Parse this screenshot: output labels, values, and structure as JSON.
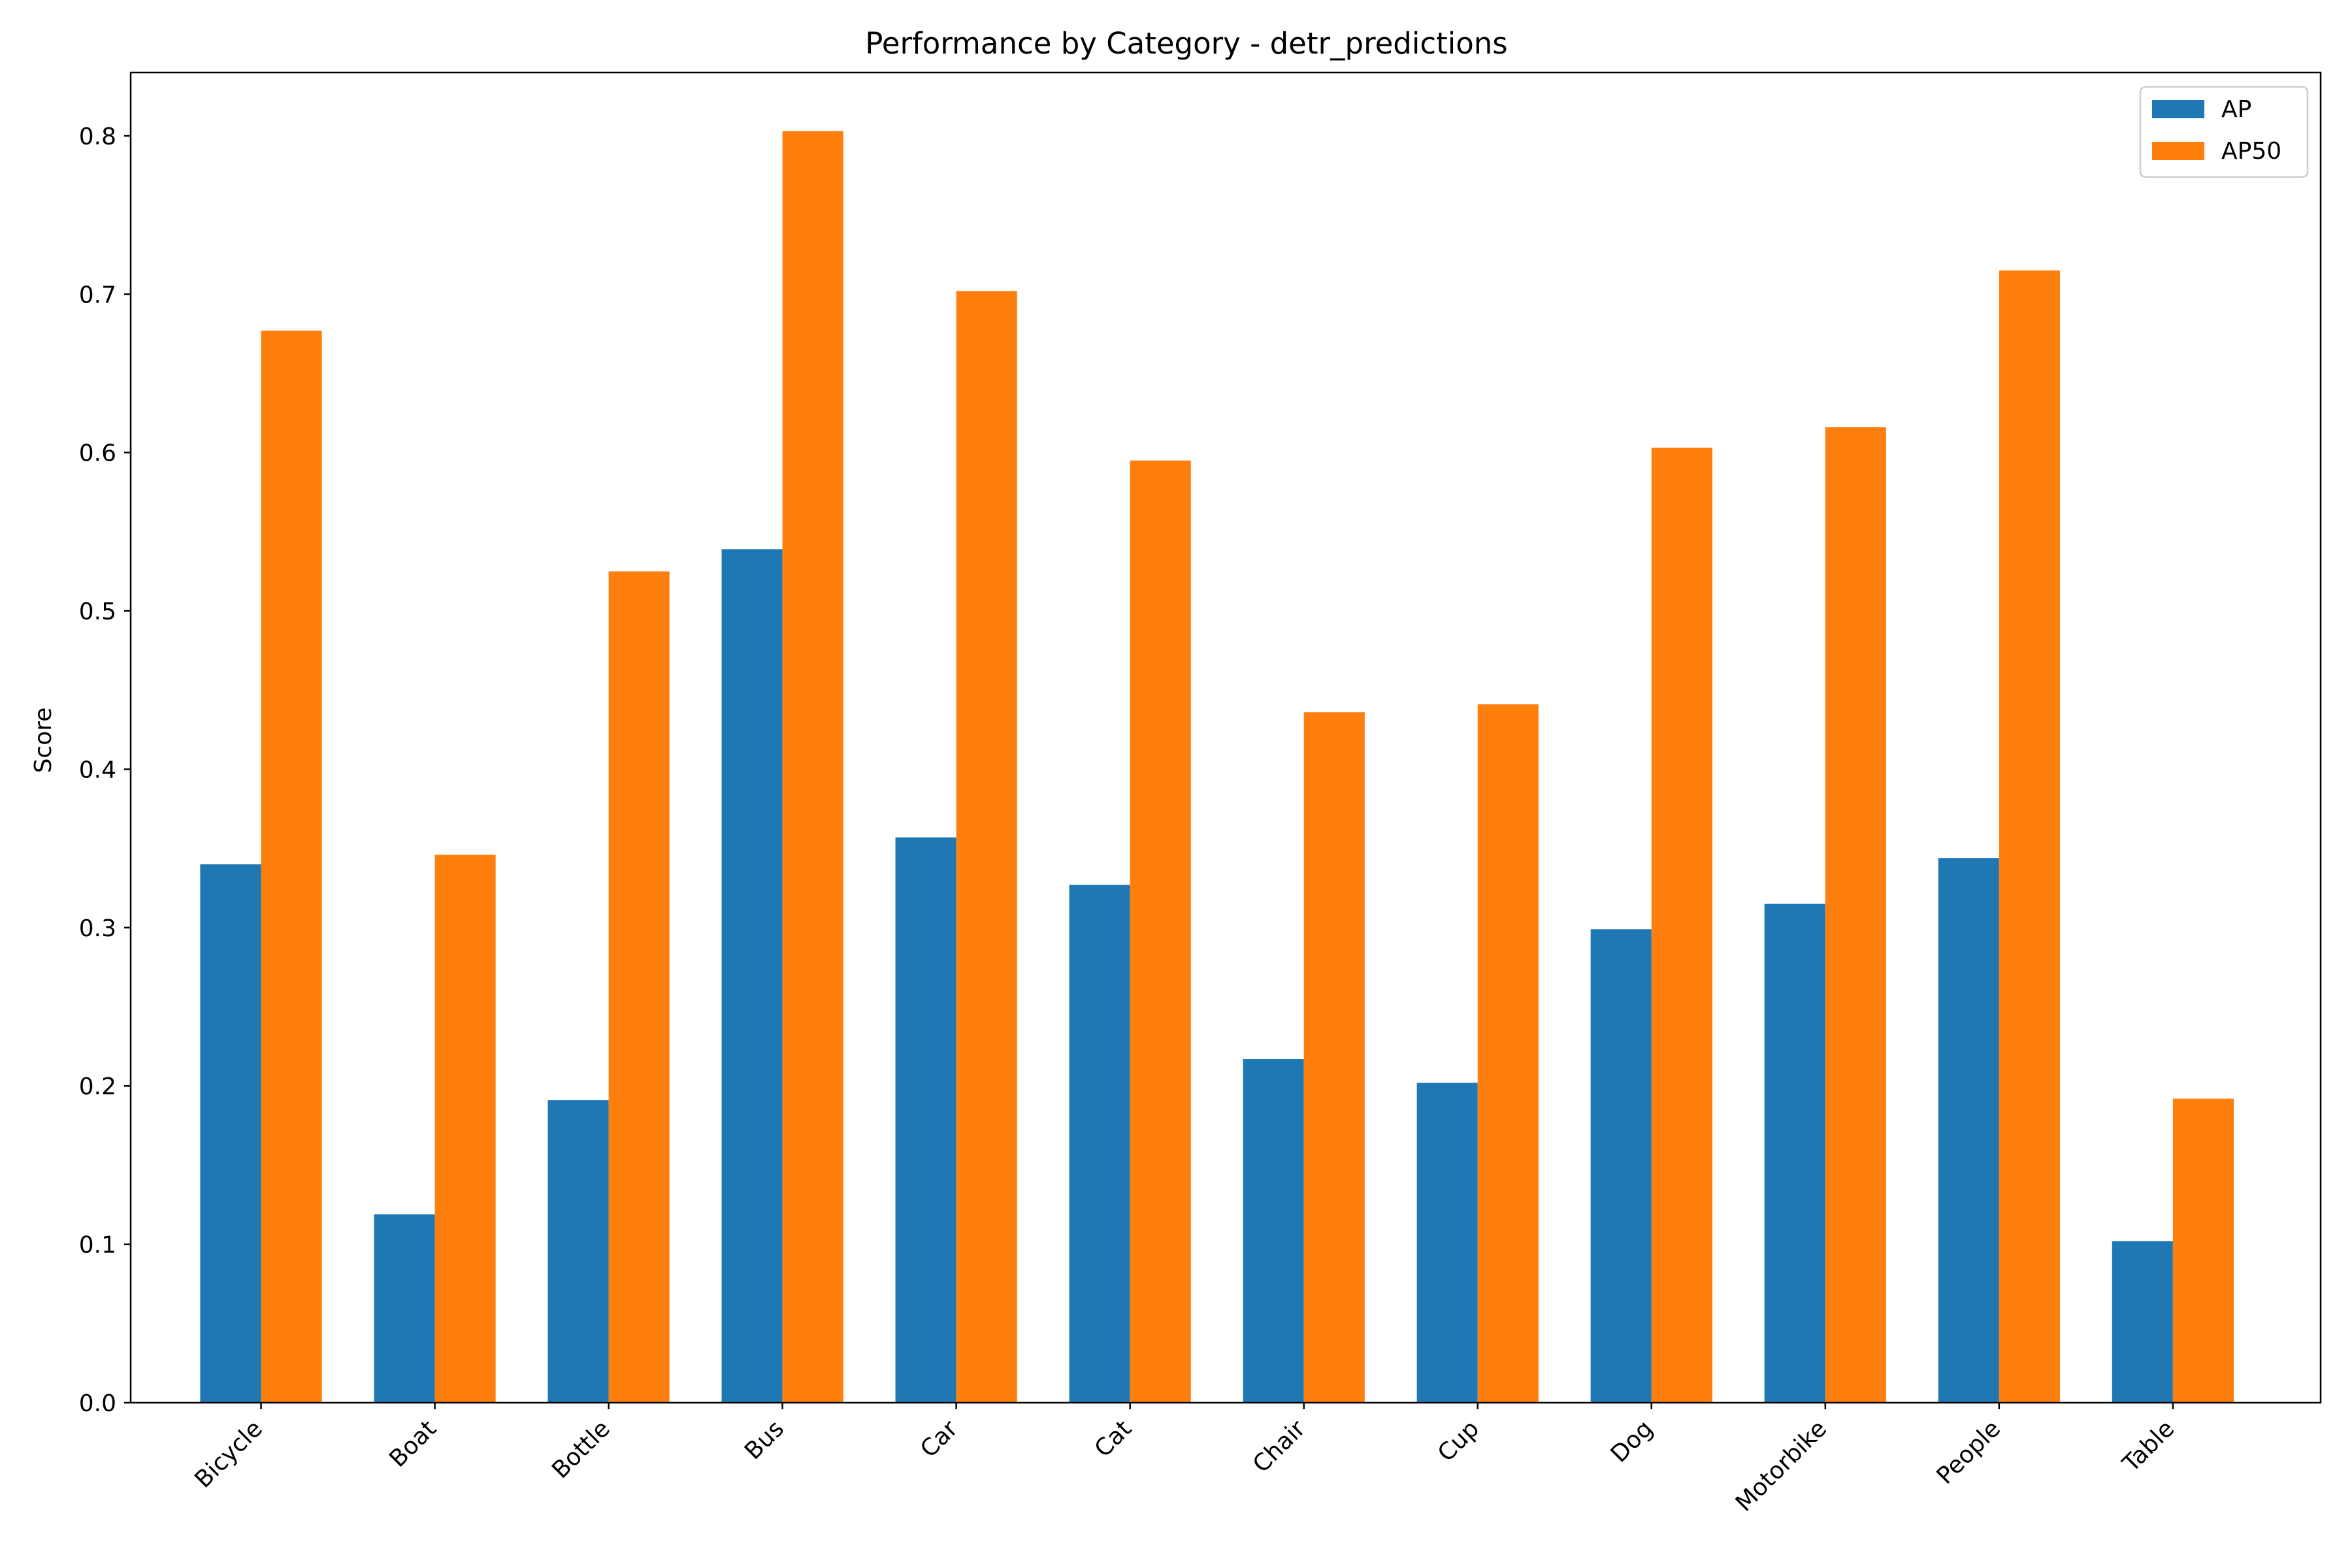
{
  "chart_data": {
    "type": "bar",
    "title": "Performance by Category - detr_predictions",
    "xlabel": "",
    "ylabel": "Score",
    "ylim": [
      0,
      0.84
    ],
    "yticks": [
      0.0,
      0.1,
      0.2,
      0.3,
      0.4,
      0.5,
      0.6,
      0.7,
      0.8
    ],
    "ytick_labels": [
      "0.0",
      "0.1",
      "0.2",
      "0.3",
      "0.4",
      "0.5",
      "0.6",
      "0.7",
      "0.8"
    ],
    "categories": [
      "Bicycle",
      "Boat",
      "Bottle",
      "Bus",
      "Car",
      "Cat",
      "Chair",
      "Cup",
      "Dog",
      "Motorbike",
      "People",
      "Table"
    ],
    "series": [
      {
        "name": "AP",
        "color": "#1f77b4",
        "values": [
          0.34,
          0.119,
          0.191,
          0.539,
          0.357,
          0.327,
          0.217,
          0.202,
          0.299,
          0.315,
          0.344,
          0.102
        ]
      },
      {
        "name": "AP50",
        "color": "#ff7f0e",
        "values": [
          0.677,
          0.346,
          0.525,
          0.803,
          0.702,
          0.595,
          0.436,
          0.441,
          0.603,
          0.616,
          0.715,
          0.192
        ]
      }
    ],
    "grid": false,
    "legend_position": "top-right"
  }
}
